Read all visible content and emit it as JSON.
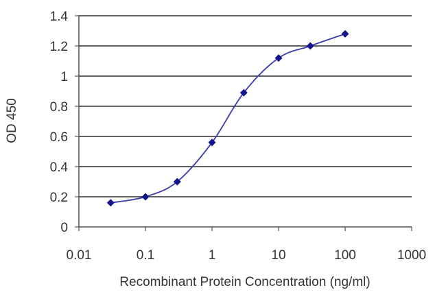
{
  "chart_data": {
    "type": "line",
    "title": "",
    "xlabel": "Recombinant Protein Concentration (ng/ml)",
    "ylabel": "OD 450",
    "x_scale": "log",
    "xlim": [
      0.01,
      1000
    ],
    "ylim": [
      0,
      1.4
    ],
    "x_ticks": [
      "0.01",
      "0.1",
      "1",
      "10",
      "100",
      "1000"
    ],
    "x_tick_values": [
      0.01,
      0.1,
      1,
      10,
      100,
      1000
    ],
    "y_ticks": [
      "0",
      "0.2",
      "0.4",
      "0.6",
      "0.8",
      "1",
      "1.2",
      "1.4"
    ],
    "y_tick_values": [
      0,
      0.2,
      0.4,
      0.6,
      0.8,
      1,
      1.2,
      1.4
    ],
    "grid": "horizontal",
    "legend": "none",
    "series": [
      {
        "x": [
          0.03,
          0.1,
          0.3,
          1,
          3,
          10,
          30,
          100
        ],
        "y": [
          0.16,
          0.2,
          0.3,
          0.56,
          0.89,
          1.12,
          1.2,
          1.28
        ]
      }
    ],
    "colors": {
      "line": "#3a3ab0",
      "marker": "#14148c",
      "grid": "#000000",
      "axis": "#555555"
    }
  }
}
